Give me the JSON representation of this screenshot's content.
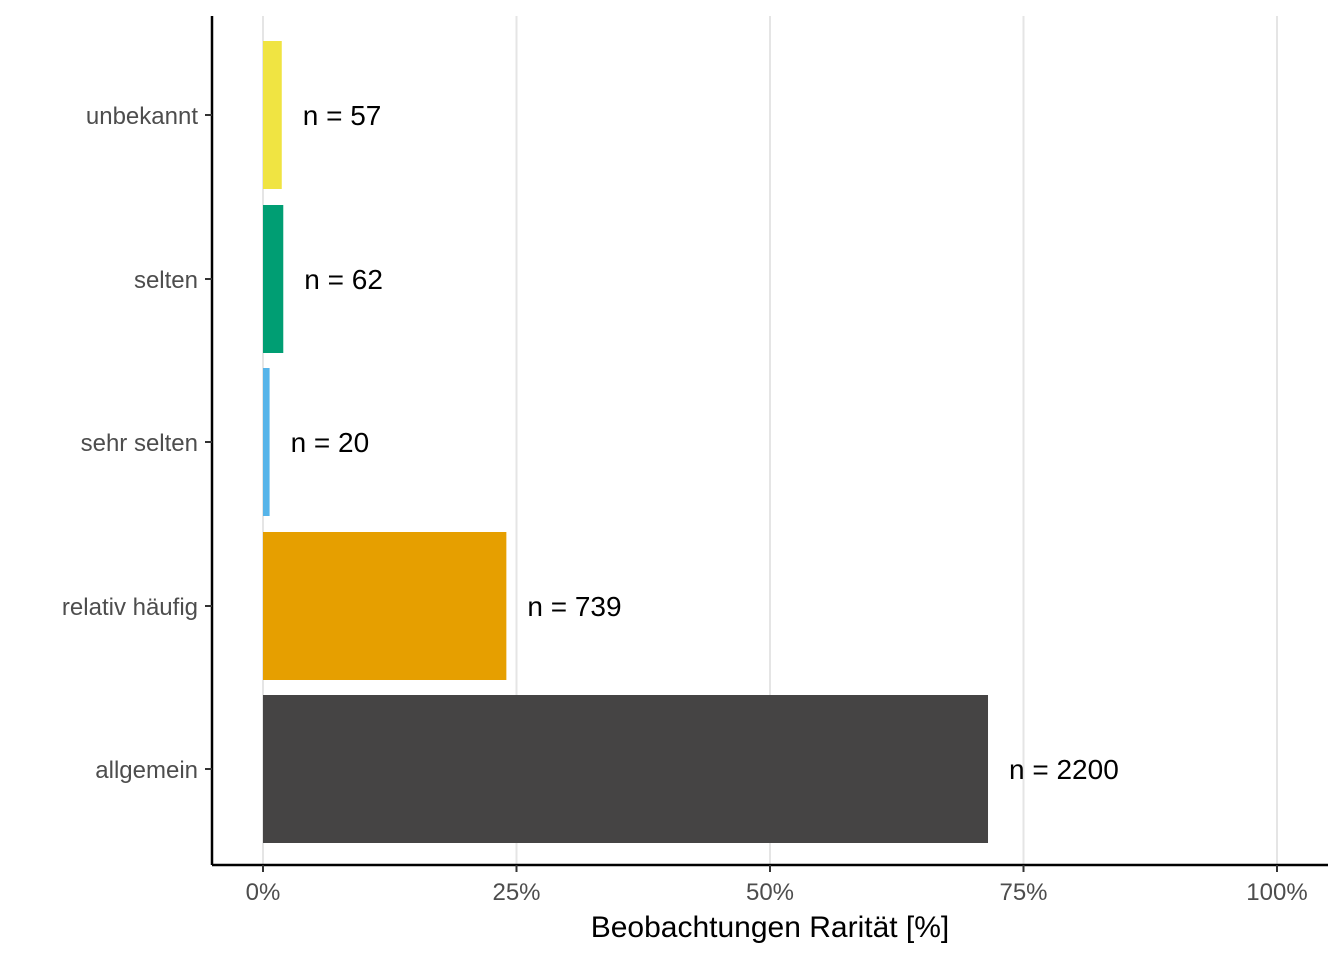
{
  "chart_data": {
    "type": "bar",
    "orientation": "horizontal",
    "categories": [
      "unbekannt",
      "selten",
      "sehr selten",
      "relativ häufig",
      "allgemein"
    ],
    "values": [
      1.85,
      2.0,
      0.65,
      24.0,
      71.5
    ],
    "labels": [
      "n = 57",
      "n = 62",
      "n = 20",
      "n = 739",
      "n = 2200"
    ],
    "colors": [
      "#f0e442",
      "#009e73",
      "#56b4e9",
      "#e69f00",
      "#454444"
    ],
    "xlabel": "Beobachtungen Rarität [%]",
    "ylabel": "",
    "title": "",
    "xlim": [
      0,
      100
    ],
    "xticks": [
      0,
      25,
      50,
      75,
      100
    ],
    "xtick_labels": [
      "0%",
      "25%",
      "50%",
      "75%",
      "100%"
    ],
    "grid": "vertical-major",
    "legend": "none"
  }
}
